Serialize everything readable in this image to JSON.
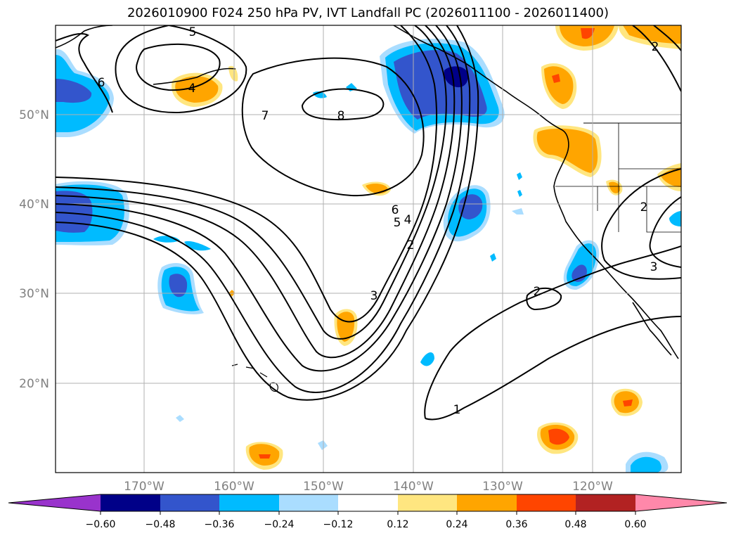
{
  "title": "2026010900 F024 250 hPa PV, IVT Landfall PC (2026011100 - 2026011400)",
  "map": {
    "lat_labels": [
      "50°N",
      "40°N",
      "30°N",
      "20°N"
    ],
    "lon_labels": [
      "170°W",
      "160°W",
      "150°W",
      "140°W",
      "130°W",
      "120°W"
    ],
    "contour_labels": [
      "5",
      "6",
      "4",
      "7",
      "8",
      "6",
      "5",
      "4",
      "2",
      "3",
      "2",
      "1",
      "2",
      "3",
      "2"
    ]
  },
  "colorbar": {
    "tick_labels": [
      "−0.60",
      "−0.48",
      "−0.36",
      "−0.24",
      "−0.12",
      "0.12",
      "0.24",
      "0.36",
      "0.48",
      "0.60"
    ],
    "colors": [
      "#9933cc",
      "#000088",
      "#3355cc",
      "#00bbff",
      "#aaddff",
      "#ffffff",
      "#ffe680",
      "#ffa500",
      "#ff4500",
      "#b22222",
      "#ff88aa"
    ]
  }
}
